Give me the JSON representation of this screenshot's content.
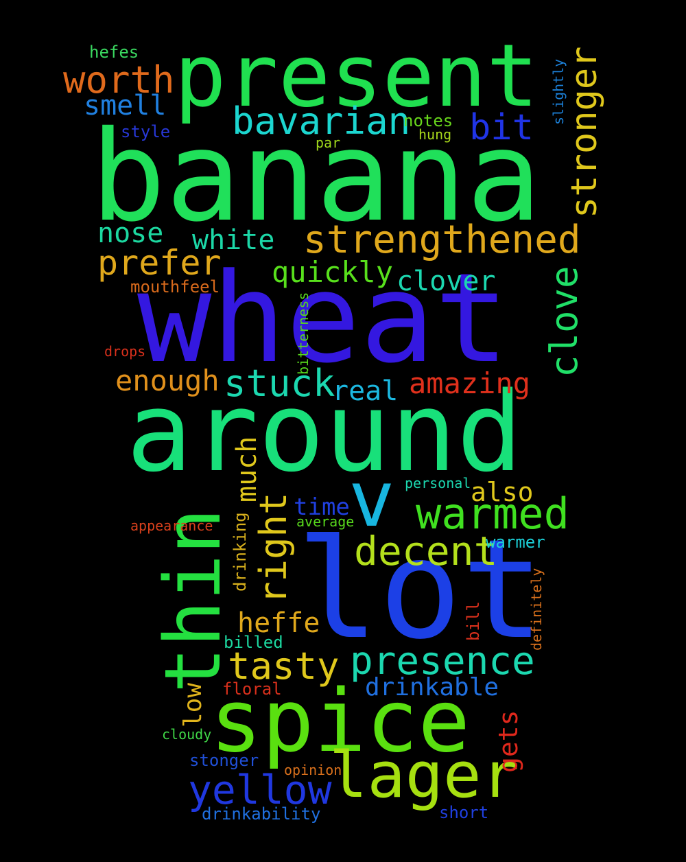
{
  "background": "#000000",
  "words": [
    {
      "id": "banana",
      "text": "banana",
      "color": "#20e05a"
    },
    {
      "id": "wheat",
      "text": "wheat",
      "color": "#3418e0"
    },
    {
      "id": "around",
      "text": "around",
      "color": "#18e07a"
    },
    {
      "id": "lot",
      "text": "lot",
      "color": "#1c40e6"
    },
    {
      "id": "present",
      "text": "present",
      "color": "#20e050"
    },
    {
      "id": "spice",
      "text": "spice",
      "color": "#5ae010"
    },
    {
      "id": "thin",
      "text": "thin",
      "color": "#24e040"
    },
    {
      "id": "lager",
      "text": "lager",
      "color": "#a6e010"
    },
    {
      "id": "v",
      "text": "v",
      "color": "#18b6e0"
    },
    {
      "id": "strengthened",
      "text": "strengthened",
      "color": "#e0a81c"
    },
    {
      "id": "presence",
      "text": "presence",
      "color": "#1cd8b0"
    },
    {
      "id": "warmed",
      "text": "warmed",
      "color": "#40e020"
    },
    {
      "id": "decent",
      "text": "decent",
      "color": "#b4e01c"
    },
    {
      "id": "yellow",
      "text": "yellow",
      "color": "#2038e0"
    },
    {
      "id": "bavarian",
      "text": "bavarian",
      "color": "#1cd6d0"
    },
    {
      "id": "stronger",
      "text": "stronger",
      "color": "#e0c81c"
    },
    {
      "id": "clove",
      "text": "clove",
      "color": "#20e068"
    },
    {
      "id": "worth",
      "text": "worth",
      "color": "#e06a1c"
    },
    {
      "id": "prefer",
      "text": "prefer",
      "color": "#e0a81c"
    },
    {
      "id": "stuck",
      "text": "stuck",
      "color": "#1cd8b0"
    },
    {
      "id": "tasty",
      "text": "tasty",
      "color": "#e0c81c"
    },
    {
      "id": "right",
      "text": "right",
      "color": "#e0c81c"
    },
    {
      "id": "bit",
      "text": "bit",
      "color": "#2034e6"
    },
    {
      "id": "amazing",
      "text": "amazing",
      "color": "#e0301c"
    },
    {
      "id": "enough",
      "text": "enough",
      "color": "#e0901c"
    },
    {
      "id": "quickly",
      "text": "quickly",
      "color": "#58e01c"
    },
    {
      "id": "white",
      "text": "white",
      "color": "#1cd8a8"
    },
    {
      "id": "nose",
      "text": "nose",
      "color": "#1cd8a0"
    },
    {
      "id": "smell",
      "text": "smell",
      "color": "#2080e0"
    },
    {
      "id": "clover",
      "text": "clover",
      "color": "#1cd8b0"
    },
    {
      "id": "real",
      "text": "real",
      "color": "#1cb8e0"
    },
    {
      "id": "heffe",
      "text": "heffe",
      "color": "#e0a81c"
    },
    {
      "id": "much",
      "text": "much",
      "color": "#e0c81c"
    },
    {
      "id": "also",
      "text": "also",
      "color": "#e0c81c"
    },
    {
      "id": "drinkable",
      "text": "drinkable",
      "color": "#2070e0"
    },
    {
      "id": "time",
      "text": "time",
      "color": "#2040e0"
    },
    {
      "id": "gets",
      "text": "gets",
      "color": "#e0281c"
    },
    {
      "id": "low",
      "text": "low",
      "color": "#e0b41c"
    },
    {
      "id": "hefes",
      "text": "hefes",
      "color": "#3ad860"
    },
    {
      "id": "style",
      "text": "style",
      "color": "#2838d8"
    },
    {
      "id": "notes",
      "text": "notes",
      "color": "#68d81c"
    },
    {
      "id": "hung",
      "text": "hung",
      "color": "#a8d81c"
    },
    {
      "id": "par",
      "text": "par",
      "color": "#a0d81c"
    },
    {
      "id": "slightly",
      "text": "slightly",
      "color": "#1c80d8"
    },
    {
      "id": "mouthfeel",
      "text": "mouthfeel",
      "color": "#d86a1c"
    },
    {
      "id": "drops",
      "text": "drops",
      "color": "#d8301c"
    },
    {
      "id": "bitterness",
      "text": "bitterness",
      "color": "#58d81c"
    },
    {
      "id": "personal",
      "text": "personal",
      "color": "#1cd8b0"
    },
    {
      "id": "average",
      "text": "average",
      "color": "#58d81c"
    },
    {
      "id": "appearance",
      "text": "appearance",
      "color": "#d8401c"
    },
    {
      "id": "warmer",
      "text": "warmer",
      "color": "#1cd0d8"
    },
    {
      "id": "drinking",
      "text": "drinking",
      "color": "#d8b01c"
    },
    {
      "id": "billed",
      "text": "billed",
      "color": "#1cd8a0"
    },
    {
      "id": "bill",
      "text": "bill",
      "color": "#d8301c"
    },
    {
      "id": "definitely",
      "text": "definitely",
      "color": "#d8701c"
    },
    {
      "id": "floral",
      "text": "floral",
      "color": "#d8301c"
    },
    {
      "id": "cloudy",
      "text": "cloudy",
      "color": "#40d848"
    },
    {
      "id": "stonger",
      "text": "stonger",
      "color": "#2050d8"
    },
    {
      "id": "opinion",
      "text": "opinion",
      "color": "#d8701c"
    },
    {
      "id": "drinkability",
      "text": "drinkability",
      "color": "#2070e0"
    },
    {
      "id": "short",
      "text": "short",
      "color": "#2040e0"
    }
  ]
}
